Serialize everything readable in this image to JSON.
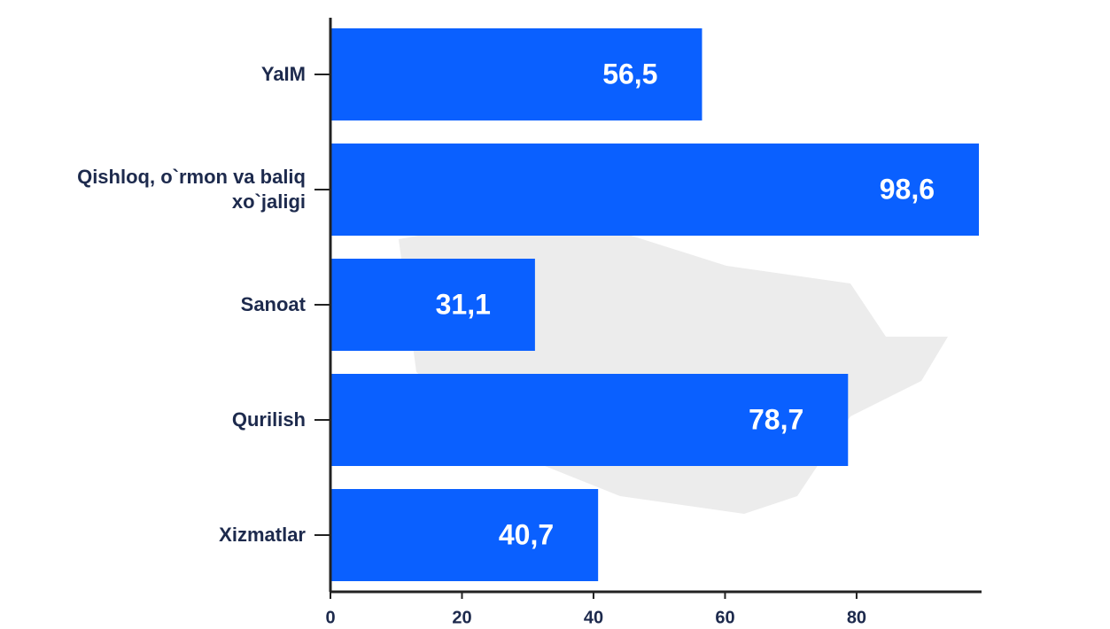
{
  "chart_data": {
    "type": "bar",
    "orientation": "horizontal",
    "categories": [
      "YaIM",
      "Qishloq, o`rmon va baliq xo`jaligi",
      "Sanoat",
      "Qurilish",
      "Xizmatlar"
    ],
    "values": [
      56.5,
      98.6,
      31.1,
      78.7,
      40.7
    ],
    "value_labels": [
      "56,5",
      "98,6",
      "31,1",
      "78,7",
      "40,7"
    ],
    "color": "#0a60ff",
    "xlim": [
      0,
      99
    ],
    "xticks": [
      0,
      20,
      40,
      60,
      80
    ]
  }
}
